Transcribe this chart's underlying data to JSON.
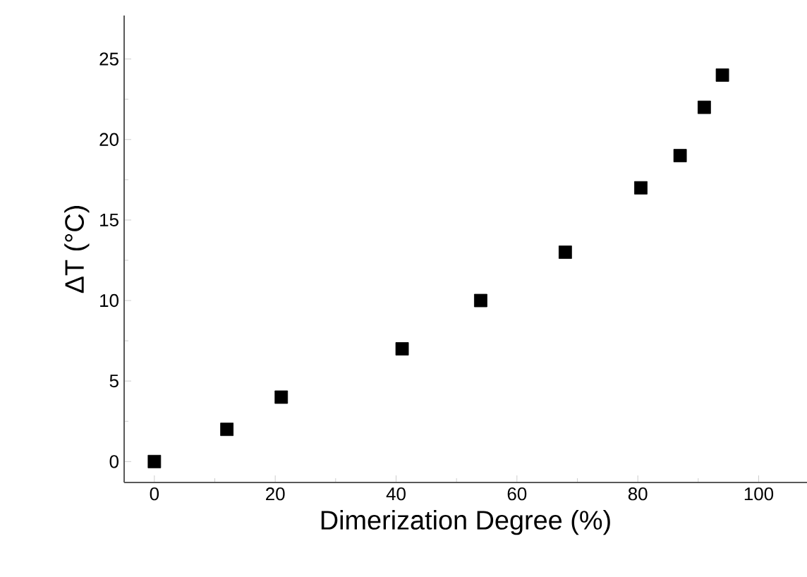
{
  "chart_data": {
    "type": "scatter",
    "xlabel": "Dimerization Degree (%)",
    "ylabel": "ΔT (°C)",
    "x": [
      0,
      12,
      21,
      41,
      54,
      68,
      80.5,
      87,
      91,
      94
    ],
    "values": [
      0,
      2,
      4,
      7,
      10,
      13,
      17,
      19,
      22,
      24
    ],
    "color": "#000000",
    "marker": "square",
    "xlim": [
      -5,
      108
    ],
    "ylim": [
      -1.3,
      27.7
    ],
    "xticks": [
      0,
      20,
      40,
      60,
      80,
      100
    ],
    "yticks": [
      0,
      5,
      10,
      15,
      20,
      25
    ]
  }
}
